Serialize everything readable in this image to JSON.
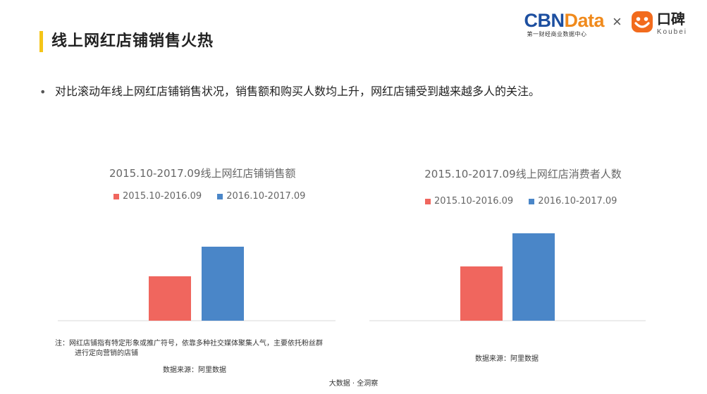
{
  "page": {
    "title": "线上网红店铺销售火热",
    "bullet_text": "对比滚动年线上网红店铺销售状况，销售额和购买人数均上升，网红店铺受到越来越多人的关注。",
    "bullet_glyph": "•",
    "footer": "大数据 · 全洞察"
  },
  "logo": {
    "cbn_part1": "CBN",
    "cbn_part2": "Data",
    "cbn_sub": "第一财经商业数据中心",
    "times": "×",
    "koubei_name": "口碑",
    "koubei_sub": "Koubei",
    "colors": {
      "cbn_blue": "#1d4fa0",
      "cbn_orange": "#f08a1c",
      "koubei_orange": "#f26b1d"
    }
  },
  "left_panel": {
    "note_line1": "注：网红店铺指有特定形象或推广符号，依靠多种社交媒体聚集人气，主要依托粉丝群",
    "note_line2": "进行定向营销的店铺",
    "source": "数据来源：阿里数据"
  },
  "right_panel": {
    "source": "数据来源：阿里数据"
  },
  "chart_data": [
    {
      "type": "bar",
      "title": "2015.10-2017.09线上网红店铺销售额",
      "categories": [
        ""
      ],
      "series": [
        {
          "name": "2015.10-2016.09",
          "color": "#f0665e",
          "values": [
            63
          ]
        },
        {
          "name": "2016.10-2017.09",
          "color": "#4a86c8",
          "values": [
            105
          ]
        }
      ],
      "xlabel": "",
      "ylabel": "",
      "ylim": [
        0,
        130
      ],
      "grid": false,
      "legend": "top",
      "note": "values are relative bar heights; no axis labels shown"
    },
    {
      "type": "bar",
      "title": "2015.10-2017.09线上网红店消费者人数",
      "categories": [
        ""
      ],
      "series": [
        {
          "name": "2015.10-2016.09",
          "color": "#f0665e",
          "values": [
            77
          ]
        },
        {
          "name": "2016.10-2017.09",
          "color": "#4a86c8",
          "values": [
            124
          ]
        }
      ],
      "xlabel": "",
      "ylabel": "",
      "ylim": [
        0,
        130
      ],
      "grid": false,
      "legend": "top",
      "note": "values are relative bar heights; no axis labels shown"
    }
  ]
}
